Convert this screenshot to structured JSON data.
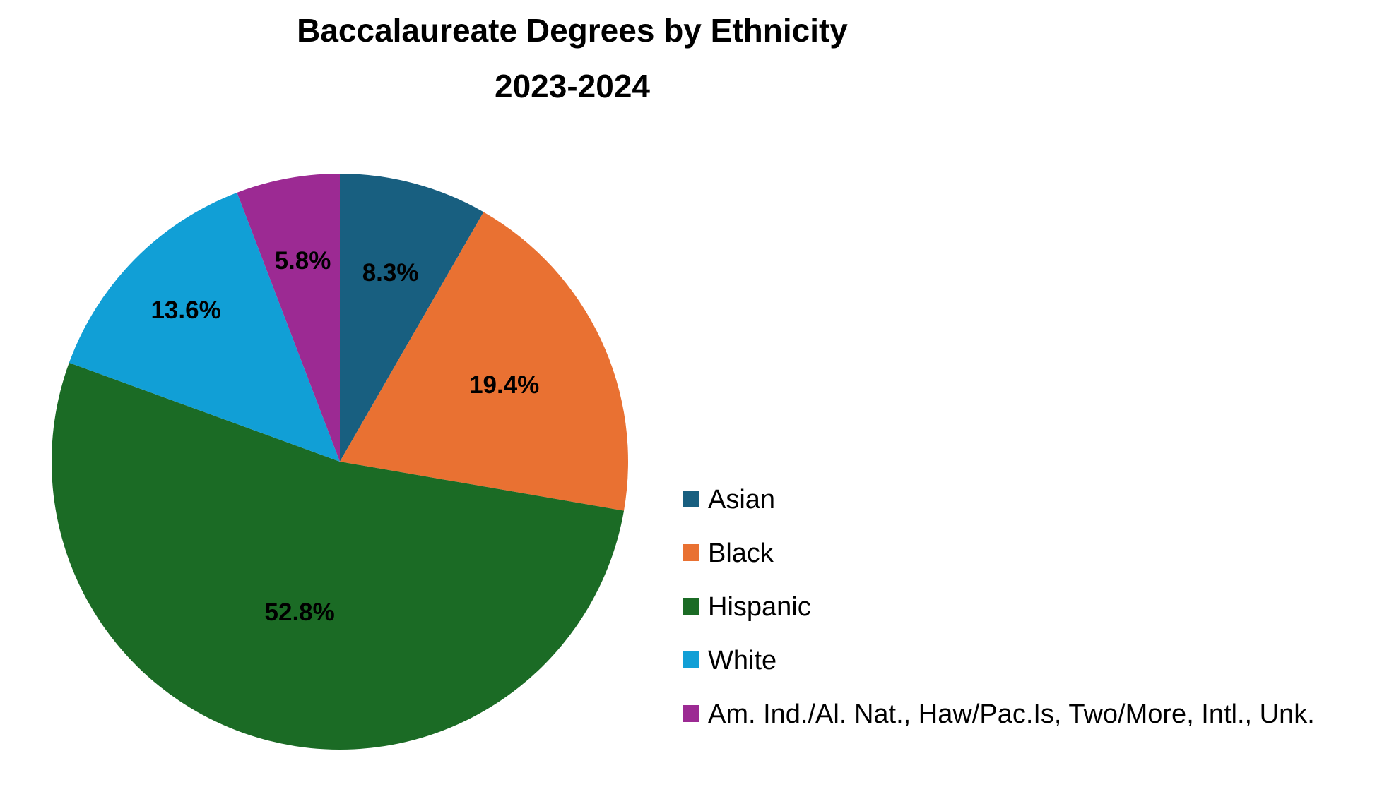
{
  "chart_data": {
    "type": "pie",
    "title": "Baccalaureate  Degrees by Ethnicity",
    "subtitle": "2023-2024",
    "categories": [
      "Asian",
      "Black",
      "Hispanic",
      "White",
      "Am. Ind./Al. Nat., Haw/Pac.Is, Two/More, Intl., Unk."
    ],
    "values": [
      8.3,
      19.4,
      52.8,
      13.6,
      5.8
    ],
    "value_labels": [
      "8.3%",
      "19.4%",
      "52.8%",
      "13.6%",
      "5.8%"
    ],
    "colors": [
      "#185f80",
      "#e97132",
      "#1b6b25",
      "#119fd6",
      "#9c2a93"
    ],
    "legend_position": "right"
  }
}
